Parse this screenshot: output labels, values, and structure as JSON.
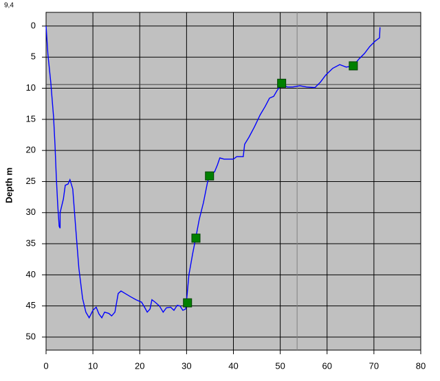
{
  "chart_data": {
    "type": "line",
    "y_label": "Depth m",
    "x": [
      0,
      0.4,
      1,
      1.6,
      1.9,
      2.2,
      2.5,
      2.8,
      3,
      3,
      3.7,
      4.1,
      4.7,
      5.1,
      5.7,
      6.3,
      7,
      7.8,
      8.5,
      9.2,
      10,
      10.7,
      11.3,
      11.9,
      12.5,
      13.4,
      14,
      14.7,
      15.4,
      16,
      16.9,
      18,
      19.2,
      20.4,
      21.1,
      21.6,
      22.2,
      22.6,
      23.3,
      24.2,
      25,
      25.7,
      26.6,
      27.3,
      28,
      28.6,
      29.2,
      29.8,
      30.1,
      30.5,
      31.3,
      32,
      32.7,
      33.6,
      34.5,
      35.1,
      36,
      36.6,
      37.1,
      38,
      40,
      40.7,
      42.1,
      42.4,
      43.3,
      44.5,
      45.7,
      46.8,
      47.7,
      48.6,
      49.3,
      50.3,
      51.5,
      52.7,
      54.2,
      55.6,
      57.4,
      58.6,
      59.7,
      61.2,
      62.7,
      64.1,
      65.6,
      66.8,
      68,
      69.1,
      70.3,
      71.2,
      71.3
    ],
    "values": [
      0,
      4.6,
      9,
      14.6,
      19,
      24.5,
      28.9,
      32.2,
      32.5,
      30,
      27.8,
      25.6,
      25.4,
      24.7,
      26.2,
      32.2,
      38.9,
      43.8,
      46,
      46.9,
      45.7,
      45.2,
      46.3,
      46.9,
      46,
      46.2,
      46.6,
      46,
      43,
      42.6,
      43,
      43.5,
      44,
      44.4,
      45.3,
      46,
      45.5,
      44,
      44.4,
      45,
      46,
      45.3,
      45.2,
      45.7,
      44.9,
      45,
      45.7,
      45.5,
      43.3,
      40,
      36.6,
      33.9,
      31.1,
      28.4,
      25,
      24,
      23.4,
      22.3,
      21.2,
      21.4,
      21.4,
      21,
      21,
      19,
      17.9,
      16.2,
      14.3,
      12.9,
      11.6,
      11.3,
      10.4,
      9.3,
      9.8,
      9.8,
      9.6,
      9.8,
      9.9,
      9,
      7.9,
      6.8,
      6.2,
      6.6,
      6.4,
      5.3,
      4.4,
      3.3,
      2.4,
      1.9,
      0.2
    ],
    "color": "#0000ff",
    "markers": {
      "x": [
        30.2,
        32,
        34.9,
        50.3,
        65.6
      ],
      "values": [
        44.5,
        34.1,
        24.1,
        9.2,
        6.4
      ],
      "color": "#008000"
    },
    "cursor": {
      "x": 53.6,
      "y": {
        "value": 9.4,
        "label": "9,4"
      }
    },
    "xlim": [
      0,
      80
    ],
    "ylim": [
      52.1,
      -2.2
    ],
    "xticks": [
      0,
      10,
      20,
      30,
      40,
      50,
      60,
      70,
      80
    ],
    "yticks": [
      0,
      5,
      10,
      15,
      20,
      25,
      30,
      35,
      40,
      45,
      50
    ],
    "grid": true,
    "background": "#c0c0c0"
  }
}
